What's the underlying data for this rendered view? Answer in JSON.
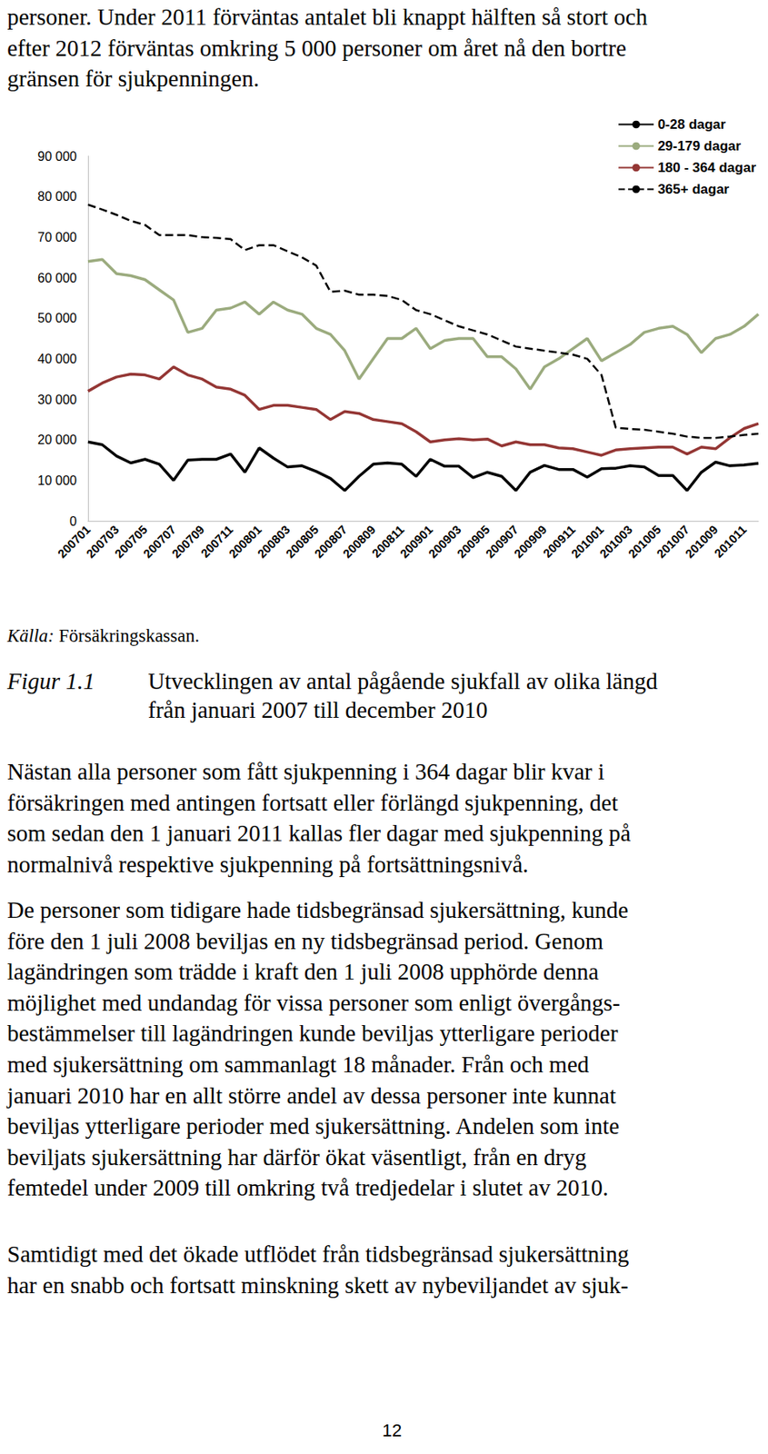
{
  "top_text": [
    "personer. Under 2011 förväntas antalet bli knappt hälften så stort och",
    "efter 2012 förväntas omkring 5 000 personer om året nå den bortre",
    "gränsen för sjukpenningen."
  ],
  "chart_data": {
    "type": "line",
    "categories": [
      "200701",
      null,
      "200703",
      null,
      "200705",
      null,
      "200707",
      null,
      "200709",
      null,
      "200711",
      null,
      "200801",
      null,
      "200803",
      null,
      "200805",
      null,
      "200807",
      null,
      "200809",
      null,
      "200811",
      null,
      "200901",
      null,
      "200903",
      null,
      "200905",
      null,
      "200907",
      null,
      "200909",
      null,
      "200911",
      null,
      "201001",
      null,
      "201003",
      null,
      "201005",
      null,
      "201007",
      null,
      "201009",
      null,
      "201011",
      null
    ],
    "series": [
      {
        "name": "0-28 dagar",
        "color": "#000000",
        "line_style": "solid",
        "values": [
          19500,
          18800,
          16000,
          14300,
          15200,
          14000,
          10000,
          15000,
          15200,
          15200,
          16500,
          12000,
          18000,
          15500,
          13300,
          13600,
          12200,
          10500,
          7500,
          11000,
          14000,
          14300,
          14000,
          11000,
          15200,
          13500,
          13500,
          10700,
          12000,
          11000,
          7500,
          12000,
          13700,
          12700,
          12700,
          10800,
          12900,
          13000,
          13600,
          13300,
          11200,
          11200,
          7500,
          12000,
          14500,
          13600,
          13800,
          14200
        ]
      },
      {
        "name": "29-179 dagar",
        "color": "#9bab7e",
        "line_style": "solid",
        "values": [
          64000,
          64500,
          61000,
          60500,
          59500,
          57000,
          54500,
          46500,
          47500,
          52000,
          52500,
          54000,
          51000,
          54000,
          52000,
          51000,
          47500,
          46000,
          42000,
          35000,
          40000,
          45000,
          45000,
          47500,
          42500,
          44500,
          45000,
          45000,
          40500,
          40500,
          37500,
          32500,
          38000,
          40000,
          42500,
          45000,
          39500,
          41500,
          43500,
          46500,
          47500,
          48000,
          46000,
          41500,
          45000,
          46000,
          48000,
          51000
        ]
      },
      {
        "name": "180 - 364 dagar",
        "color": "#943634",
        "line_style": "solid",
        "values": [
          32000,
          34000,
          35500,
          36200,
          36000,
          35000,
          38000,
          36000,
          35000,
          33000,
          32500,
          31000,
          27500,
          28500,
          28500,
          28000,
          27500,
          25000,
          27000,
          26500,
          25000,
          24500,
          24000,
          22000,
          19500,
          20000,
          20300,
          20000,
          20200,
          18500,
          19500,
          18800,
          18800,
          18000,
          17800,
          17000,
          16200,
          17500,
          17800,
          18000,
          18200,
          18200,
          16500,
          18200,
          17800,
          20500,
          22800,
          24000
        ]
      },
      {
        "name": "365+ dagar",
        "color": "#000000",
        "line_style": "dashed",
        "values": [
          78000,
          76800,
          75500,
          74000,
          73000,
          70500,
          70500,
          70500,
          70000,
          69800,
          69500,
          66800,
          68000,
          68000,
          66500,
          65000,
          63000,
          56500,
          56800,
          55800,
          55800,
          55500,
          54500,
          52000,
          51000,
          49500,
          48000,
          47000,
          46000,
          44500,
          43000,
          42500,
          42000,
          41500,
          41000,
          40000,
          36000,
          23000,
          22700,
          22500,
          22000,
          21500,
          20800,
          20500,
          20500,
          20800,
          21200,
          21500
        ]
      }
    ],
    "ylim": [
      0,
      90000
    ],
    "yticks": [
      0,
      {
        "value": 10000,
        "label": "10 000"
      },
      {
        "value": 20000,
        "label": "20 000"
      },
      {
        "value": 30000,
        "label": "30 000"
      },
      {
        "value": 40000,
        "label": "40 000"
      },
      {
        "value": 50000,
        "label": "50 000"
      },
      {
        "value": 60000,
        "label": "60 000"
      },
      {
        "value": 70000,
        "label": "70 000"
      },
      {
        "value": 80000,
        "label": "80 000"
      },
      {
        "value": 90000,
        "label": "90 000"
      }
    ],
    "grid": false,
    "legend": "upper right"
  },
  "source": {
    "label": "Källa:",
    "text": "Försäkringskassan."
  },
  "caption": {
    "label": "Figur 1.1",
    "lines": [
      "Utvecklingen av antal pågående sjukfall av olika längd",
      "från januari 2007 till december 2010"
    ]
  },
  "paragraphs": [
    [
      "Nästan alla personer som fått sjukpenning i 364 dagar blir kvar i",
      "försäkringen med antingen fortsatt eller förlängd sjukpenning, det",
      "som sedan den 1 januari 2011 kallas fler dagar med sjukpenning på",
      "normalnivå respektive sjukpenning på fortsättningsnivå."
    ],
    [
      "De personer som tidigare hade tidsbegränsad sjukersättning, kunde",
      "före den 1 juli 2008 beviljas en ny tidsbegränsad period. Genom",
      "lagändringen som trädde i kraft den 1 juli 2008 upphörde denna",
      "möjlighet med undandag för vissa personer som enligt övergångs-",
      "bestämmelser till lagändringen kunde beviljas ytterligare perioder",
      "med sjukersättning om sammanlagt 18 månader. Från och med",
      "januari 2010 har en allt större andel av dessa personer inte kunnat",
      "beviljas ytterligare perioder med sjukersättning. Andelen som inte",
      "beviljats sjukersättning har därför ökat väsentligt, från en dryg",
      "femtedel under 2009 till omkring två tredjedelar i slutet av 2010."
    ],
    [
      "Samtidigt med det ökade utflödet från tidsbegränsad sjukersättning",
      "har en snabb och fortsatt minskning skett av nybeviljandet av sjuk-"
    ]
  ],
  "page_number": "12"
}
